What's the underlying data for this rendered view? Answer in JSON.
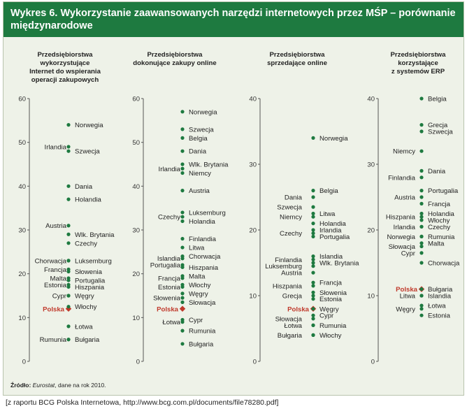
{
  "title": "Wykres 6. Wykorzystanie zaawansowanych narzędzi internetowych przez MŚP – porównanie międzynarodowe",
  "source": {
    "prefix": "Źródło: ",
    "name": "Eurostat",
    "suffix": ", dane na rok 2010."
  },
  "footer": "[z raportu BCG Polska Internetowa, http://www.bcg.com.pl/documents/file78280.pdf]",
  "colors": {
    "header": "#1e7a40",
    "background": "#eef2e8",
    "dot": "#1e7a40",
    "highlight": "#c0392b",
    "axis": "#555555"
  },
  "highlight_label": "Polska",
  "chart_data": [
    {
      "type": "scatter",
      "title_lines": [
        "Przedsiębiorstwa",
        "wykorzystujące",
        "Internet do wspierania",
        "operacji zakupowych"
      ],
      "ylim": [
        0,
        60
      ],
      "yticks": [
        0,
        10,
        20,
        30,
        40,
        50,
        60
      ],
      "points": [
        {
          "label": "Norwegia",
          "value": 54,
          "side": "right"
        },
        {
          "label": "Irlandia",
          "value": 49,
          "side": "left"
        },
        {
          "label": "Szwecja",
          "value": 48,
          "side": "right"
        },
        {
          "label": "Dania",
          "value": 40,
          "side": "right"
        },
        {
          "label": "Holandia",
          "value": 37,
          "side": "right"
        },
        {
          "label": "Austria",
          "value": 31,
          "side": "left"
        },
        {
          "label": "Wlk. Brytania",
          "value": 29,
          "side": "right"
        },
        {
          "label": "Czechy",
          "value": 27,
          "side": "right"
        },
        {
          "label": "Chorwacja",
          "value": 23,
          "side": "left"
        },
        {
          "label": "Luksemburg",
          "value": 23,
          "side": "right"
        },
        {
          "label": "Francja",
          "value": 21,
          "side": "left"
        },
        {
          "label": "Słowenia",
          "value": 20.5,
          "side": "right"
        },
        {
          "label": "Malta",
          "value": 19,
          "side": "left"
        },
        {
          "label": "Portugalia",
          "value": 18.5,
          "side": "right"
        },
        {
          "label": "Estonia",
          "value": 17.5,
          "side": "left"
        },
        {
          "label": "Hiszpania",
          "value": 17,
          "side": "right"
        },
        {
          "label": "Cypr",
          "value": 15,
          "side": "left"
        },
        {
          "label": "Węgry",
          "value": 15,
          "side": "right"
        },
        {
          "label": "Polska",
          "value": 12,
          "side": "left",
          "highlight": true
        },
        {
          "label": "Włochy",
          "value": 12.5,
          "side": "right"
        },
        {
          "label": "Łotwa",
          "value": 8,
          "side": "right"
        },
        {
          "label": "Rumunia",
          "value": 5,
          "side": "left"
        },
        {
          "label": "Bułgaria",
          "value": 5,
          "side": "right"
        }
      ]
    },
    {
      "type": "scatter",
      "title_lines": [
        "Przedsiębiorstwa",
        "dokonujące zakupy online"
      ],
      "ylim": [
        0,
        60
      ],
      "yticks": [
        0,
        10,
        20,
        30,
        40,
        50,
        60
      ],
      "points": [
        {
          "label": "Norwegia",
          "value": 57,
          "side": "right"
        },
        {
          "label": "Szwecja",
          "value": 53,
          "side": "right"
        },
        {
          "label": "Belgia",
          "value": 51,
          "side": "right"
        },
        {
          "label": "Dania",
          "value": 48,
          "side": "right"
        },
        {
          "label": "Wlk. Brytania",
          "value": 45,
          "side": "right"
        },
        {
          "label": "Irlandia",
          "value": 44,
          "side": "left"
        },
        {
          "label": "Niemcy",
          "value": 43,
          "side": "right"
        },
        {
          "label": "Austria",
          "value": 39,
          "side": "right"
        },
        {
          "label": "Luksemburg",
          "value": 34,
          "side": "right"
        },
        {
          "label": "Czechy",
          "value": 33,
          "side": "left"
        },
        {
          "label": "Holandia",
          "value": 32,
          "side": "right"
        },
        {
          "label": "Finlandia",
          "value": 28,
          "side": "right"
        },
        {
          "label": "Litwa",
          "value": 26,
          "side": "right"
        },
        {
          "label": "Islandia",
          "value": 23.5,
          "side": "left"
        },
        {
          "label": "Chorwacja",
          "value": 24,
          "side": "right"
        },
        {
          "label": "Portugalia",
          "value": 22,
          "side": "left"
        },
        {
          "label": "Hiszpania",
          "value": 21.5,
          "side": "right"
        },
        {
          "label": "Francja",
          "value": 19,
          "side": "left"
        },
        {
          "label": "Malta",
          "value": 19.5,
          "side": "right"
        },
        {
          "label": "Estonia",
          "value": 17,
          "side": "left"
        },
        {
          "label": "Włochy",
          "value": 17.5,
          "side": "right"
        },
        {
          "label": "Słowenia",
          "value": 14.5,
          "side": "left"
        },
        {
          "label": "Węgry",
          "value": 15.5,
          "side": "right"
        },
        {
          "label": "Słowacja",
          "value": 13.5,
          "side": "right"
        },
        {
          "label": "Polska",
          "value": 12,
          "side": "left",
          "highlight": true
        },
        {
          "label": "Łotwa",
          "value": 9,
          "side": "left"
        },
        {
          "label": "Cypr",
          "value": 9.5,
          "side": "right"
        },
        {
          "label": "Rumunia",
          "value": 7,
          "side": "right"
        },
        {
          "label": "Bułgaria",
          "value": 4,
          "side": "right"
        }
      ]
    },
    {
      "type": "scatter",
      "title_lines": [
        "Przedsiębiorstwa",
        "sprzedające online"
      ],
      "ylim": [
        0,
        40
      ],
      "yticks": [
        0,
        10,
        20,
        30,
        40
      ],
      "points": [
        {
          "label": "Norwegia",
          "value": 34,
          "side": "right"
        },
        {
          "label": "Belgia",
          "value": 26,
          "side": "right"
        },
        {
          "label": "Dania",
          "value": 25,
          "side": "left"
        },
        {
          "label": "Szwecja",
          "value": 23.5,
          "side": "left"
        },
        {
          "label": "Litwa",
          "value": 22.5,
          "side": "right"
        },
        {
          "label": "Niemcy",
          "value": 22,
          "side": "left"
        },
        {
          "label": "Holandia",
          "value": 21,
          "side": "right"
        },
        {
          "label": "Irlandia",
          "value": 20,
          "side": "right"
        },
        {
          "label": "Czechy",
          "value": 19.5,
          "side": "left"
        },
        {
          "label": "Portugalia",
          "value": 19,
          "side": "right"
        },
        {
          "label": "Islandia",
          "value": 16,
          "side": "right"
        },
        {
          "label": "Finlandia",
          "value": 15.5,
          "side": "left"
        },
        {
          "label": "Wlk. Brytania",
          "value": 15,
          "side": "right"
        },
        {
          "label": "Luksemburg",
          "value": 14.5,
          "side": "left"
        },
        {
          "label": "Austria",
          "value": 13.5,
          "side": "left"
        },
        {
          "label": "Francja",
          "value": 12,
          "side": "right"
        },
        {
          "label": "Hiszpania",
          "value": 11.5,
          "side": "left"
        },
        {
          "label": "Słowenia",
          "value": 10.5,
          "side": "right"
        },
        {
          "label": "Grecja",
          "value": 10,
          "side": "left"
        },
        {
          "label": "Estonia",
          "value": 9.5,
          "side": "right"
        },
        {
          "label": "Polska",
          "value": 8,
          "side": "left",
          "highlight": true
        },
        {
          "label": "Węgry",
          "value": 8,
          "side": "right"
        },
        {
          "label": "Cypr",
          "value": 7,
          "side": "right"
        },
        {
          "label": "Słowacja",
          "value": 6.5,
          "side": "left"
        },
        {
          "label": "Rumunia",
          "value": 5.5,
          "side": "right"
        },
        {
          "label": "Łotwa",
          "value": 5.5,
          "side": "left"
        },
        {
          "label": "Bułgaria",
          "value": 4,
          "side": "left"
        },
        {
          "label": "Włochy",
          "value": 4,
          "side": "right"
        }
      ]
    },
    {
      "type": "scatter",
      "title_lines": [
        "Przedsiębiorstwa",
        "korzystające",
        "z systemów ERP"
      ],
      "ylim": [
        0,
        40
      ],
      "yticks": [
        0,
        10,
        20,
        30,
        40
      ],
      "points": [
        {
          "label": "Belgia",
          "value": 40,
          "side": "right"
        },
        {
          "label": "Grecja",
          "value": 36,
          "side": "right"
        },
        {
          "label": "Szwecja",
          "value": 35,
          "side": "right"
        },
        {
          "label": "Niemcy",
          "value": 32,
          "side": "left"
        },
        {
          "label": "Dania",
          "value": 29,
          "side": "right"
        },
        {
          "label": "Finlandia",
          "value": 28,
          "side": "left"
        },
        {
          "label": "Portugalia",
          "value": 26,
          "side": "right"
        },
        {
          "label": "Austria",
          "value": 25,
          "side": "left"
        },
        {
          "label": "Francja",
          "value": 24,
          "side": "right"
        },
        {
          "label": "Holandia",
          "value": 22.5,
          "side": "right"
        },
        {
          "label": "Hiszpania",
          "value": 22,
          "side": "left"
        },
        {
          "label": "Włochy",
          "value": 21.5,
          "side": "right"
        },
        {
          "label": "Irlandia",
          "value": 20.5,
          "side": "left"
        },
        {
          "label": "Czechy",
          "value": 20.5,
          "side": "right"
        },
        {
          "label": "Norwegia",
          "value": 19,
          "side": "left"
        },
        {
          "label": "Rumunia",
          "value": 19,
          "side": "right"
        },
        {
          "label": "Słowacja",
          "value": 17.5,
          "side": "left"
        },
        {
          "label": "Malta",
          "value": 18,
          "side": "right"
        },
        {
          "label": "Cypr",
          "value": 16.5,
          "side": "left"
        },
        {
          "label": "Chorwacja",
          "value": 15,
          "side": "right"
        },
        {
          "label": "Polska",
          "value": 11,
          "side": "left",
          "highlight": true
        },
        {
          "label": "Bułgaria",
          "value": 11,
          "side": "right"
        },
        {
          "label": "Litwa",
          "value": 10,
          "side": "left"
        },
        {
          "label": "Islandia",
          "value": 10,
          "side": "right"
        },
        {
          "label": "Węgry",
          "value": 8,
          "side": "left"
        },
        {
          "label": "Łotwa",
          "value": 8.5,
          "side": "right"
        },
        {
          "label": "Estonia",
          "value": 7,
          "side": "right"
        }
      ]
    }
  ]
}
